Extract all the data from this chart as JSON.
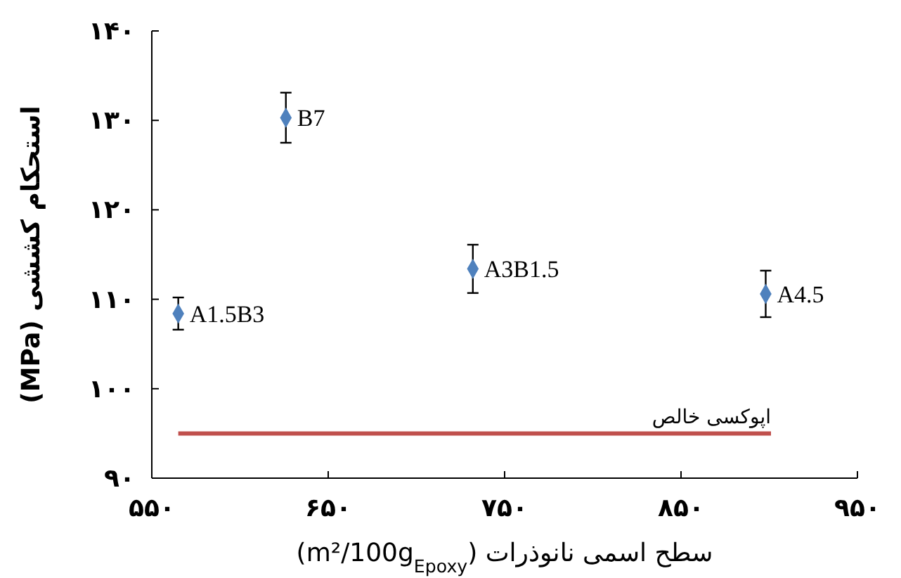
{
  "chart_data": {
    "type": "scatter",
    "xlabel": "سطح اسمی نانوذرات (m²/100g$_{Epoxy}$)",
    "ylabel": "استحکام کششی (MPa)",
    "xlim": [
      550,
      950
    ],
    "xticks": [
      {
        "value": 550,
        "label": "۵۵۰"
      },
      {
        "value": 650,
        "label": "۶۵۰"
      },
      {
        "value": 750,
        "label": "۷۵۰"
      },
      {
        "value": 850,
        "label": "۸۵۰"
      },
      {
        "value": 950,
        "label": "۹۵۰"
      }
    ],
    "ylim": [
      90,
      140
    ],
    "yticks": [
      {
        "value": 90,
        "label": "۹۰"
      },
      {
        "value": 100,
        "label": "۱۰۰"
      },
      {
        "value": 110,
        "label": "۱۱۰"
      },
      {
        "value": 120,
        "label": "۱۲۰"
      },
      {
        "value": 130,
        "label": "۱۳۰"
      },
      {
        "value": 140,
        "label": "۱۴۰"
      }
    ],
    "series": [
      {
        "color": "#4f81bd",
        "x": [
          565,
          626,
          732,
          898
        ],
        "values": [
          108.4,
          130.3,
          113.4,
          110.6
        ],
        "errors": [
          1.8,
          2.8,
          2.7,
          2.6
        ]
      },
      {
        "type": "line",
        "name": "اپوکسی خالص",
        "color": "#c0504d",
        "x": [
          565,
          901
        ],
        "values": [
          95,
          95
        ],
        "marker": "none"
      }
    ],
    "marker": "diamond",
    "grid": false,
    "annotations": [
      {
        "text": "A1.5B3",
        "x": 565,
        "y": 108.4
      },
      {
        "text": "B7",
        "x": 626,
        "y": 130.3
      },
      {
        "text": "A3B1.5",
        "x": 732,
        "y": 113.4
      },
      {
        "text": "A4.5",
        "x": 898,
        "y": 110.6
      }
    ]
  }
}
